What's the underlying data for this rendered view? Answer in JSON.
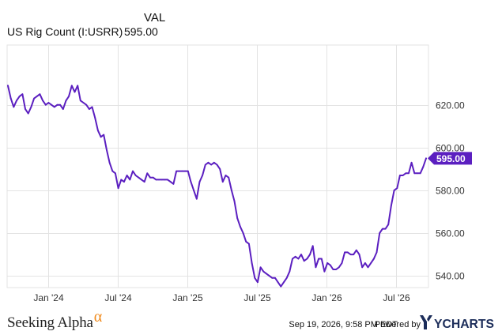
{
  "legend": {
    "column_header": "VAL",
    "series_name": "US Rig Count (I:USRR)",
    "series_value": "595.00"
  },
  "footer": {
    "brand": "Seeking Alpha",
    "brand_symbol": "α",
    "timestamp": "Sep 19, 2026, 9:58 PM EDT",
    "powered_by": "Powered by",
    "provider": "YCHARTS"
  },
  "colors": {
    "line": "#5b1fc0",
    "grid": "#e3e3e3",
    "brand_accent": "#f08a1c",
    "provider": "#1c2d5a"
  },
  "chart_data": {
    "type": "line",
    "title": "",
    "xlabel": "",
    "ylabel": "",
    "ylim": [
      534.5,
      648
    ],
    "grid": true,
    "y_axis_side": "right",
    "y_ticks": [
      "540.00",
      "560.00",
      "580.00",
      "600.00",
      "620.00"
    ],
    "x_ticks": [
      "Jan '24",
      "Jul '24",
      "Jan '25",
      "Jul '25",
      "Jan '26",
      "Jul '26"
    ],
    "last_value_label": "595.00",
    "series": [
      {
        "values": [
          629,
          623,
          619,
          622,
          624,
          625,
          618,
          616,
          619,
          623,
          624,
          625,
          622,
          620,
          621,
          620,
          619,
          620,
          620,
          618,
          622,
          624,
          629,
          626,
          629,
          622,
          621,
          620,
          618,
          619,
          614,
          608,
          605,
          606,
          599,
          593,
          589,
          588,
          581,
          585,
          584,
          587,
          585,
          589,
          587,
          586,
          585,
          584,
          588,
          586,
          586,
          585,
          585,
          585,
          585,
          585,
          584,
          583,
          589,
          589,
          589,
          589,
          589,
          584,
          580,
          576,
          584,
          587,
          592,
          593,
          592,
          593,
          592,
          590,
          584,
          587,
          586,
          580,
          575,
          567,
          563,
          560,
          556,
          555,
          546,
          539,
          537,
          544,
          542,
          541,
          540,
          539,
          539,
          537,
          535,
          537,
          539,
          542,
          548,
          549,
          548,
          550,
          547,
          548,
          550,
          554,
          544,
          548,
          548,
          542,
          546,
          545,
          543,
          543,
          544,
          546,
          551,
          551,
          550,
          550,
          552,
          550,
          544,
          546,
          544,
          546,
          548,
          551,
          560,
          562,
          562,
          564,
          573,
          580,
          581,
          587,
          587,
          588,
          588,
          593,
          588,
          588,
          588,
          591,
          595
        ]
      }
    ]
  }
}
